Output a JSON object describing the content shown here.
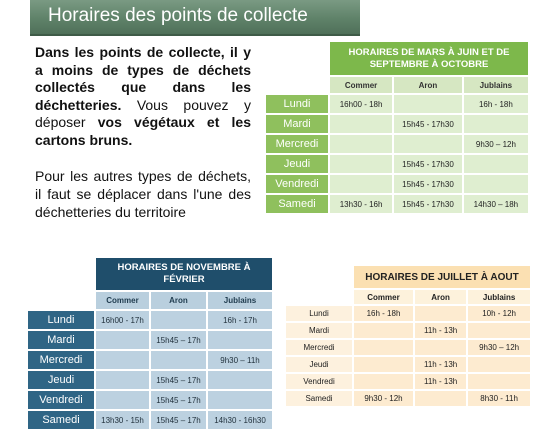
{
  "banner": {
    "title": "Horaires des points de collecte"
  },
  "intro": {
    "bold1": "Dans les points de collecte, il y a moins de types de déchets collectés que dans les déchetteries.",
    "normal1": " Vous pouvez y déposer ",
    "bold2": "vos végétaux et les cartons bruns.",
    "paragraph2": "Pour les autres types de déchets, il faut se déplacer dans l'une des déchetteries du territoire"
  },
  "table_summer": {
    "title": "HORAIRES DE MARS À JUIN ET DE SEPTEMBRE À OCTOBRE",
    "columns": [
      "Commer",
      "Aron",
      "Jublains"
    ],
    "rows": [
      {
        "day": "Lundi",
        "cells": [
          "16h00 - 18h",
          "",
          "16h - 18h"
        ]
      },
      {
        "day": "Mardi",
        "cells": [
          "",
          "15h45 - 17h30",
          ""
        ]
      },
      {
        "day": "Mercredi",
        "cells": [
          "",
          "",
          "9h30 – 12h"
        ]
      },
      {
        "day": "Jeudi",
        "cells": [
          "",
          "15h45 - 17h30",
          ""
        ]
      },
      {
        "day": "Vendredi",
        "cells": [
          "",
          "15h45 - 17h30",
          ""
        ]
      },
      {
        "day": "Samedi",
        "cells": [
          "13h30 - 16h",
          "15h45 - 17h30",
          "14h30 – 18h"
        ]
      }
    ]
  },
  "table_winter": {
    "title": "HORAIRES DE NOVEMBRE À FÉVRIER",
    "columns": [
      "Commer",
      "Aron",
      "Jublains"
    ],
    "rows": [
      {
        "day": "Lundi",
        "cells": [
          "16h00 - 17h",
          "",
          "16h - 17h"
        ]
      },
      {
        "day": "Mardi",
        "cells": [
          "",
          "15h45 – 17h",
          ""
        ]
      },
      {
        "day": "Mercredi",
        "cells": [
          "",
          "",
          "9h30 – 11h"
        ]
      },
      {
        "day": "Jeudi",
        "cells": [
          "",
          "15h45 – 17h",
          ""
        ]
      },
      {
        "day": "Vendredi",
        "cells": [
          "",
          "15h45 – 17h",
          ""
        ]
      },
      {
        "day": "Samedi",
        "cells": [
          "13h30 - 15h",
          "15h45 – 17h",
          "14h30 - 16h30"
        ]
      }
    ]
  },
  "table_july": {
    "title": "HORAIRES DE JUILLET À AOUT",
    "columns": [
      "Commer",
      "Aron",
      "Jublains"
    ],
    "rows": [
      {
        "day": "Lundi",
        "cells": [
          "16h - 18h",
          "",
          "10h - 12h"
        ]
      },
      {
        "day": "Mardi",
        "cells": [
          "",
          "11h - 13h",
          ""
        ]
      },
      {
        "day": "Mercredi",
        "cells": [
          "",
          "",
          "9h30 – 12h"
        ]
      },
      {
        "day": "Jeudi",
        "cells": [
          "",
          "11h - 13h",
          ""
        ]
      },
      {
        "day": "Vendredi",
        "cells": [
          "",
          "11h - 13h",
          ""
        ]
      },
      {
        "day": "Samedi",
        "cells": [
          "9h30 - 12h",
          "",
          "8h30 - 11h"
        ]
      }
    ]
  }
}
